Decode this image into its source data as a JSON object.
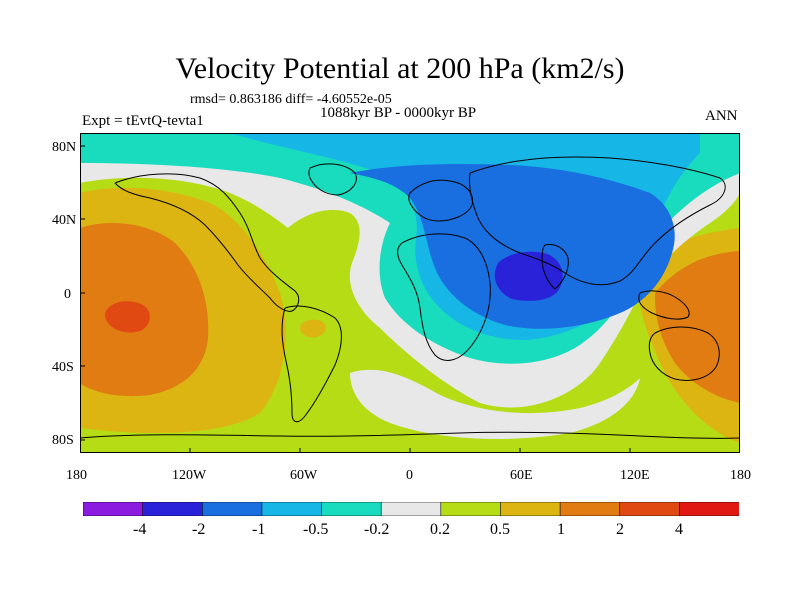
{
  "title": "Velocity Potential at 200 hPa (km2/s)",
  "stats": "rmsd= 0.863186 diff= -4.60552e-05",
  "period": "1088kyr BP - 0000kyr BP",
  "experiment": "Expt = tEvtQ-tevta1",
  "season": "ANN",
  "lat_ticks": [
    "80N",
    "40N",
    "0",
    "40S",
    "80S"
  ],
  "lon_ticks": [
    "180",
    "120W",
    "60W",
    "0",
    "60E",
    "120E",
    "180"
  ],
  "colorbar": {
    "levels": [
      "-4",
      "-2",
      "-1",
      "-0.5",
      "-0.2",
      "0.2",
      "0.5",
      "1",
      "2",
      "4"
    ],
    "colors": [
      "#8c1be0",
      "#2a22d8",
      "#1a6fe0",
      "#16b6e6",
      "#19dcbe",
      "#e8e8e8",
      "#b6dc16",
      "#ddb512",
      "#e07c12",
      "#e04a12",
      "#e01a12"
    ]
  }
}
